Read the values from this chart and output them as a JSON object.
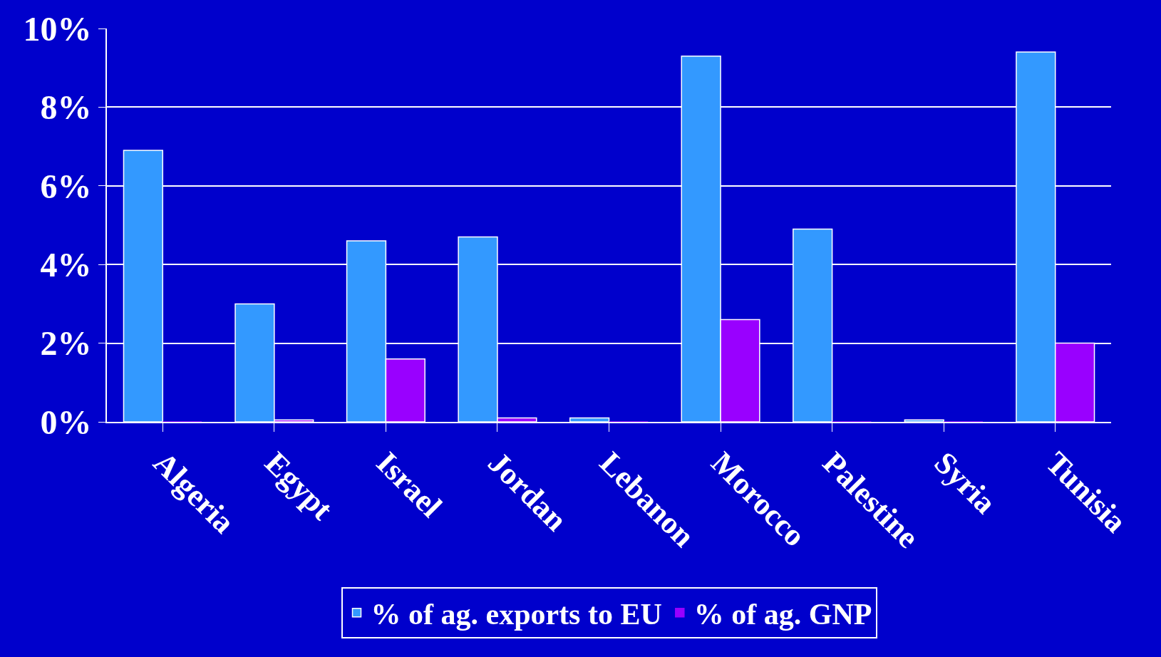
{
  "chart_data": {
    "type": "bar",
    "categories": [
      "Algeria",
      "Egypt",
      "Israel",
      "Jordan",
      "Lebanon",
      "Morocco",
      "Palestine",
      "Syria",
      "Tunisia"
    ],
    "series": [
      {
        "name": "% of ag. exports to EU",
        "color": "#3399ff",
        "values": [
          6.9,
          3.0,
          4.6,
          4.7,
          0.1,
          9.3,
          4.9,
          0.05,
          9.4
        ]
      },
      {
        "name": "% of ag. GNP",
        "color": "#9900ff",
        "values": [
          0,
          0.05,
          1.6,
          0.1,
          0,
          2.6,
          0,
          0,
          2.0
        ]
      }
    ],
    "ylim": [
      0,
      10
    ],
    "yticks": [
      {
        "value": 0,
        "label": "0%"
      },
      {
        "value": 2,
        "label": "2%"
      },
      {
        "value": 4,
        "label": "4%"
      },
      {
        "value": 6,
        "label": "6%"
      },
      {
        "value": 8,
        "label": "8%"
      },
      {
        "value": 10,
        "label": "10%"
      }
    ],
    "grid": "y",
    "legend": "bottom"
  }
}
